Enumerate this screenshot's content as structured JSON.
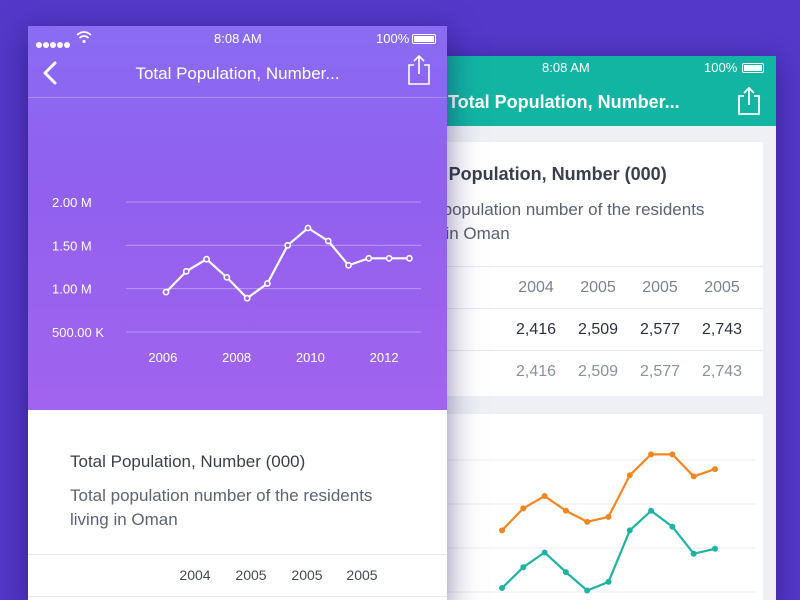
{
  "back_screen": {
    "status": {
      "time": "8:08 AM",
      "battery": "100%"
    },
    "title": "Total Population, Number...",
    "card": {
      "title": "Total Population, Number (000)",
      "description": "Total population number of the residents living in Oman",
      "years": [
        "2004",
        "2005",
        "2005",
        "2005"
      ],
      "values": [
        "2,416",
        "2,509",
        "2,577",
        "2,743"
      ],
      "values_secondary": [
        "2,416",
        "2,509",
        "2,577",
        "2,743"
      ]
    },
    "colors": {
      "header": "#12b5a2",
      "series_orange": "#f3861f",
      "series_teal": "#1fb3a3"
    }
  },
  "front_screen": {
    "status": {
      "time": "8:08 AM",
      "battery": "100%"
    },
    "title": "Total Population, Number...",
    "card": {
      "title": "Total Population, Number (000)",
      "description": "Total population number of the residents living in Oman",
      "years": [
        "2004",
        "2005",
        "2005",
        "2005"
      ]
    },
    "colors": {
      "header_gradient_start": "#8a6cf3",
      "header_gradient_end": "#a164ee"
    }
  },
  "chart_data": [
    {
      "type": "line",
      "title": "",
      "xlabel": "",
      "ylabel": "",
      "y_tick_labels": [
        "2.00 M",
        "1.50 M",
        "1.00 M",
        "500.00 K"
      ],
      "y_ticks": [
        2000000,
        1500000,
        1000000,
        500000
      ],
      "x_tick_labels": [
        "2006",
        "2008",
        "2010",
        "2012"
      ],
      "x_ticks": [
        2006,
        2008,
        2010,
        2012
      ],
      "xlim": [
        2005,
        2013
      ],
      "ylim": [
        500000,
        2000000
      ],
      "grid": true,
      "series": [
        {
          "x": [
            2005.0,
            2005.55,
            2006.1,
            2006.65,
            2007.2,
            2007.75,
            2008.3,
            2008.85,
            2009.4,
            2009.95,
            2010.5,
            2011.05,
            2011.6
          ],
          "y": [
            960000,
            1200000,
            1340000,
            1130000,
            890000,
            1060000,
            1500000,
            1700000,
            1550000,
            1270000,
            1350000,
            1350000,
            1350000
          ]
        }
      ]
    },
    {
      "type": "line",
      "series": [
        {
          "color": "#f3861f",
          "y": [
            2.0,
            2.18,
            2.28,
            2.16,
            2.07,
            2.11,
            2.45,
            2.62,
            2.62,
            2.44,
            2.5
          ]
        },
        {
          "color": "#1fb3a3",
          "y": [
            1.53,
            1.7,
            1.82,
            1.66,
            1.51,
            1.58,
            2.0,
            2.16,
            2.03,
            1.81,
            1.85
          ]
        }
      ],
      "ylim": [
        1.4,
        2.9
      ],
      "grid": true
    }
  ]
}
